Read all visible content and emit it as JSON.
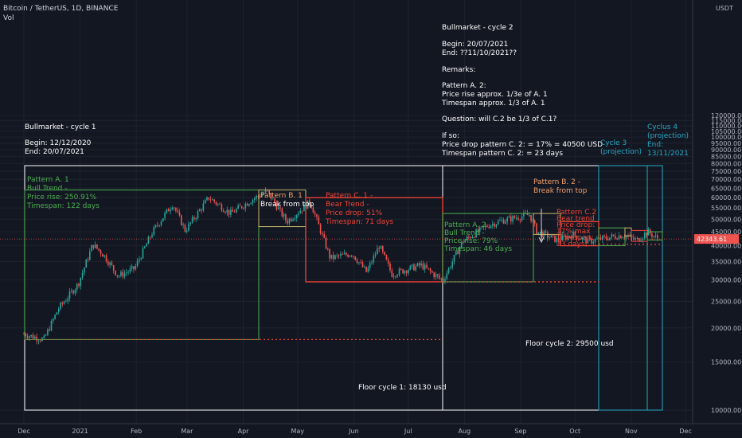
{
  "header": {
    "symbol_line": "Bitcoin / TetherUS, 1D, BINANCE",
    "vol_label": "Vol"
  },
  "colors": {
    "background": "#131722",
    "up": "#26a69a",
    "down": "#ef5350",
    "green_box": "#4caf50",
    "red_box": "#f44336",
    "yellow_box": "#c8b86a",
    "white": "#ffffff",
    "cyan": "#26a9c4",
    "orange_text": "#f5a06a"
  },
  "chart_data": {
    "type": "candlestick",
    "y_scale": "log",
    "ylim": [
      9500,
      125000
    ],
    "price_unit": "USDT",
    "current_price": "42343.61",
    "x_tick_labels": [
      "Dec",
      "2021",
      "Feb",
      "Mar",
      "Apr",
      "May",
      "Jun",
      "Jul",
      "Aug",
      "Sep",
      "Oct",
      "Nov",
      "Dec"
    ],
    "y_tick_labels": [
      "120000.00",
      "115000.00",
      "110000.00",
      "105000.00",
      "100000.00",
      "95000.00",
      "90000.00",
      "85000.00",
      "80000.00",
      "75000.00",
      "70000.00",
      "65000.00",
      "60000.00",
      "55000.00",
      "50000.00",
      "45000.00",
      "40000.00",
      "35000.00",
      "30000.00",
      "25000.00",
      "20000.00",
      "15000.00",
      "10000.00"
    ],
    "y_tick_values": [
      120000,
      115000,
      110000,
      105000,
      100000,
      95000,
      90000,
      85000,
      80000,
      75000,
      70000,
      65000,
      60000,
      55000,
      50000,
      45000,
      40000,
      35000,
      30000,
      25000,
      20000,
      15000,
      10000
    ],
    "price_path": [
      [
        "2020-12-01",
        19000
      ],
      [
        "2020-12-12",
        18130
      ],
      [
        "2020-12-20",
        23500
      ],
      [
        "2020-12-31",
        29000
      ],
      [
        "2021-01-08",
        40500
      ],
      [
        "2021-01-14",
        37000
      ],
      [
        "2021-01-22",
        31000
      ],
      [
        "2021-01-31",
        33000
      ],
      [
        "2021-02-10",
        45000
      ],
      [
        "2021-02-21",
        57000
      ],
      [
        "2021-02-28",
        45500
      ],
      [
        "2021-03-13",
        60000
      ],
      [
        "2021-03-25",
        52500
      ],
      [
        "2021-04-05",
        58500
      ],
      [
        "2021-04-14",
        63500
      ],
      [
        "2021-04-25",
        49000
      ],
      [
        "2021-05-08",
        58000
      ],
      [
        "2021-05-19",
        36000
      ],
      [
        "2021-05-31",
        37500
      ],
      [
        "2021-06-08",
        32000
      ],
      [
        "2021-06-15",
        40000
      ],
      [
        "2021-06-22",
        31500
      ],
      [
        "2021-07-08",
        34000
      ],
      [
        "2021-07-20",
        29800
      ],
      [
        "2021-07-31",
        41500
      ],
      [
        "2021-08-14",
        47500
      ],
      [
        "2021-08-22",
        49500
      ],
      [
        "2021-09-06",
        52000
      ],
      [
        "2021-09-10",
        45000
      ],
      [
        "2021-09-21",
        42000
      ],
      [
        "2021-09-30",
        44000
      ],
      [
        "2021-10-08",
        41500
      ],
      [
        "2021-10-16",
        42500
      ],
      [
        "2021-10-22",
        43200
      ],
      [
        "2021-10-28",
        43800
      ],
      [
        "2021-11-04",
        41800
      ],
      [
        "2021-11-10",
        45000
      ],
      [
        "2021-11-16",
        42343
      ]
    ],
    "annotations": {
      "bullmarket_cycle1": {
        "title": "Bullmarket - cycle 1",
        "begin": "Begin: 12/12/2020",
        "end": "End: 20/07/2021"
      },
      "bullmarket_cycle2": {
        "title": "Bullmarket - cycle 2",
        "begin": "Begin: 20/07/2021",
        "end": "End: ??11/10/2021??",
        "remarks": "Remarks:",
        "pattern_a2_head": "Pattern A. 2:",
        "pattern_a2_line1": "Price rise approx. 1/3e of A. 1",
        "pattern_a2_line2": "Timespan approx. 1/3 of A. 1",
        "question": "Question: will C.2 be 1/3 of C.1?",
        "if_so": "If so:",
        "drop_line": "Price drop pattern C. 2: = 17% = 40500 USD",
        "timespan_line": "Timespan pattern C. 2: = 23 days"
      },
      "cycle3": {
        "line1": "Cycle 3",
        "line2": "(projection)"
      },
      "cyclus4": {
        "line1": "Cyclus 4",
        "line2": "(projection)",
        "line3": "End:",
        "line4": "13/11/2021"
      },
      "pattern_a1": {
        "line1": "Pattern A. 1",
        "line2": "Bull Trend -",
        "line3": "Price rise: 250.91%",
        "line4": "Timespan: 122 days"
      },
      "pattern_b1": {
        "line1": "Pattern B. 1",
        "line2": "Break from top"
      },
      "pattern_c1": {
        "line1": "Pattern C. 1 -",
        "line2": "Bear Trend -",
        "line3": "Price drop: 51%",
        "line4": "Timespan: 71 days"
      },
      "pattern_a2": {
        "line1": "Pattern A. 2",
        "line2": "Bull Trend -",
        "line3": "Price rise: 79%",
        "line4": "Timespan: 46 days"
      },
      "pattern_b2": {
        "line1": "Pattern B. 2 -",
        "line2": "Break from top"
      },
      "pattern_c2": {
        "line1": "Pattern C.2",
        "line2": "Bear trend",
        "line3": "Price drop:",
        "line4": "17% max",
        "line5": "Timespan:",
        "line6": "23 days"
      },
      "floor_cycle1": "Floor cycle 1: 18130 usd",
      "floor_cycle2": "Floor cycle 2: 29500 usd"
    }
  }
}
